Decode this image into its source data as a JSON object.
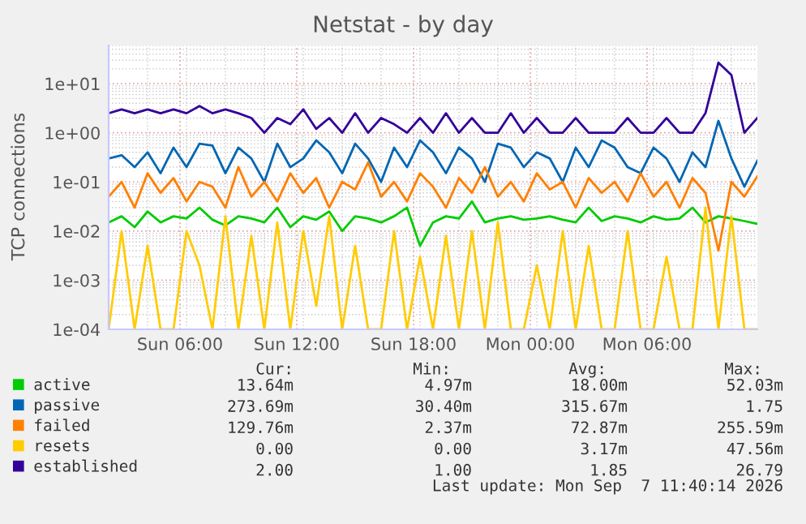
{
  "chart_data": {
    "type": "line",
    "title": "Netstat - by day",
    "ylabel": "TCP connections",
    "x": [
      "2026-09-06T02:20",
      "2026-09-06T03:00",
      "2026-09-06T03:40",
      "2026-09-06T04:20",
      "2026-09-06T05:00",
      "2026-09-06T05:40",
      "2026-09-06T06:20",
      "2026-09-06T07:00",
      "2026-09-06T07:40",
      "2026-09-06T08:20",
      "2026-09-06T09:00",
      "2026-09-06T09:40",
      "2026-09-06T10:20",
      "2026-09-06T11:00",
      "2026-09-06T11:40",
      "2026-09-06T12:20",
      "2026-09-06T13:00",
      "2026-09-06T13:40",
      "2026-09-06T14:20",
      "2026-09-06T15:00",
      "2026-09-06T15:40",
      "2026-09-06T16:20",
      "2026-09-06T17:00",
      "2026-09-06T17:40",
      "2026-09-06T18:20",
      "2026-09-06T19:00",
      "2026-09-06T19:40",
      "2026-09-06T20:20",
      "2026-09-06T21:00",
      "2026-09-06T21:40",
      "2026-09-06T22:20",
      "2026-09-06T23:00",
      "2026-09-06T23:40",
      "2026-09-07T00:20",
      "2026-09-07T01:00",
      "2026-09-07T01:40",
      "2026-09-07T02:20",
      "2026-09-07T03:00",
      "2026-09-07T03:40",
      "2026-09-07T04:20",
      "2026-09-07T05:00",
      "2026-09-07T05:40",
      "2026-09-07T06:20",
      "2026-09-07T07:00",
      "2026-09-07T07:40",
      "2026-09-07T08:20",
      "2026-09-07T09:00",
      "2026-09-07T09:40",
      "2026-09-07T10:20",
      "2026-09-07T11:00",
      "2026-09-07T11:40"
    ],
    "series": [
      {
        "name": "active",
        "color": "#00cc00",
        "values": [
          0.015,
          0.02,
          0.012,
          0.025,
          0.015,
          0.02,
          0.018,
          0.03,
          0.017,
          0.013,
          0.02,
          0.018,
          0.015,
          0.03,
          0.012,
          0.02,
          0.017,
          0.025,
          0.01,
          0.02,
          0.018,
          0.015,
          0.02,
          0.03,
          0.005,
          0.015,
          0.02,
          0.018,
          0.04,
          0.015,
          0.018,
          0.02,
          0.017,
          0.018,
          0.02,
          0.017,
          0.015,
          0.03,
          0.016,
          0.02,
          0.018,
          0.015,
          0.02,
          0.017,
          0.018,
          0.03,
          0.015,
          0.02,
          0.018,
          0.016,
          0.014
        ]
      },
      {
        "name": "passive",
        "color": "#0066b3",
        "values": [
          0.3,
          0.35,
          0.2,
          0.4,
          0.15,
          0.5,
          0.2,
          0.6,
          0.55,
          0.15,
          0.5,
          0.3,
          0.1,
          0.6,
          0.2,
          0.3,
          0.7,
          0.4,
          0.15,
          0.6,
          0.3,
          0.1,
          0.5,
          0.2,
          0.7,
          0.4,
          0.15,
          0.5,
          0.3,
          0.1,
          0.6,
          0.5,
          0.2,
          0.4,
          0.3,
          0.1,
          0.5,
          0.2,
          0.7,
          0.5,
          0.2,
          0.15,
          0.5,
          0.3,
          0.1,
          0.4,
          0.2,
          1.75,
          0.3,
          0.08,
          0.27
        ]
      },
      {
        "name": "failed",
        "color": "#ff8000",
        "values": [
          0.05,
          0.1,
          0.03,
          0.15,
          0.06,
          0.12,
          0.04,
          0.1,
          0.08,
          0.03,
          0.2,
          0.05,
          0.1,
          0.04,
          0.15,
          0.06,
          0.12,
          0.03,
          0.1,
          0.07,
          0.25,
          0.05,
          0.1,
          0.04,
          0.15,
          0.08,
          0.03,
          0.12,
          0.06,
          0.2,
          0.05,
          0.1,
          0.04,
          0.15,
          0.07,
          0.1,
          0.03,
          0.12,
          0.06,
          0.1,
          0.04,
          0.15,
          0.05,
          0.1,
          0.03,
          0.12,
          0.06,
          0.004,
          0.1,
          0.05,
          0.13
        ]
      },
      {
        "name": "resets",
        "color": "#ffcc00",
        "values": [
          0.0001,
          0.01,
          0.0001,
          0.005,
          0.0001,
          0.0001,
          0.01,
          0.002,
          0.0001,
          0.02,
          0.0001,
          0.008,
          0.0001,
          0.015,
          0.0001,
          0.01,
          0.0003,
          0.02,
          0.0001,
          0.005,
          0.0001,
          0.0001,
          0.01,
          0.0001,
          0.003,
          0.0001,
          0.008,
          0.0001,
          0.01,
          0.0001,
          0.015,
          0.0001,
          0.0001,
          0.002,
          0.0001,
          0.01,
          0.0001,
          0.005,
          0.0001,
          0.0001,
          0.01,
          0.0001,
          0.0001,
          0.003,
          0.0001,
          0.0001,
          0.03,
          0.0001,
          0.02,
          0.0001,
          0.0001
        ]
      },
      {
        "name": "established",
        "color": "#330099",
        "values": [
          2.5,
          3,
          2.5,
          3,
          2.5,
          3,
          2.5,
          3.5,
          2.5,
          3,
          2.5,
          2,
          1,
          2,
          1.5,
          3,
          1.2,
          2,
          1,
          2.5,
          1,
          2,
          1.5,
          1,
          2,
          1,
          2.5,
          1,
          2,
          1,
          1,
          2.5,
          1,
          2,
          1,
          1,
          2,
          1,
          1,
          1,
          2,
          1,
          1,
          2,
          1,
          1,
          2.5,
          26.79,
          15,
          1,
          2
        ]
      }
    ],
    "log": "y",
    "ylim": [
      0.0001,
      60
    ],
    "yticks": [
      {
        "value": 0.0001,
        "label": "1e-04"
      },
      {
        "value": 0.001,
        "label": "1e-03"
      },
      {
        "value": 0.01,
        "label": "1e-02"
      },
      {
        "value": 0.1,
        "label": "1e-01"
      },
      {
        "value": 1,
        "label": "1e+00"
      },
      {
        "value": 10,
        "label": "1e+01"
      }
    ],
    "xlim": [
      "2026-09-06T02:20",
      "2026-09-07T11:40"
    ],
    "xticks": [
      {
        "value": "2026-09-06T06:00",
        "label": "Sun 06:00"
      },
      {
        "value": "2026-09-06T12:00",
        "label": "Sun 12:00"
      },
      {
        "value": "2026-09-06T18:00",
        "label": "Sun 18:00"
      },
      {
        "value": "2026-09-07T00:00",
        "label": "Mon 00:00"
      },
      {
        "value": "2026-09-07T06:00",
        "label": "Mon 06:00"
      }
    ],
    "grid": true,
    "legend": "bottom",
    "marker": "none",
    "line_style": "solid",
    "annotations": [
      "Cur:",
      "Min:",
      "Avg:",
      "Max:",
      "13.64m",
      "4.97m",
      "18.00m",
      "52.03m",
      "273.69m",
      "30.40m",
      "315.67m",
      "1.75",
      "129.76m",
      "2.37m",
      "72.87m",
      "255.59m",
      "0.00",
      "0.00",
      "3.17m",
      "47.56m",
      "2.00",
      "1.00",
      "1.85",
      "26.79",
      "Last update: Mon Sep  7 11:40:14 2026"
    ]
  }
}
